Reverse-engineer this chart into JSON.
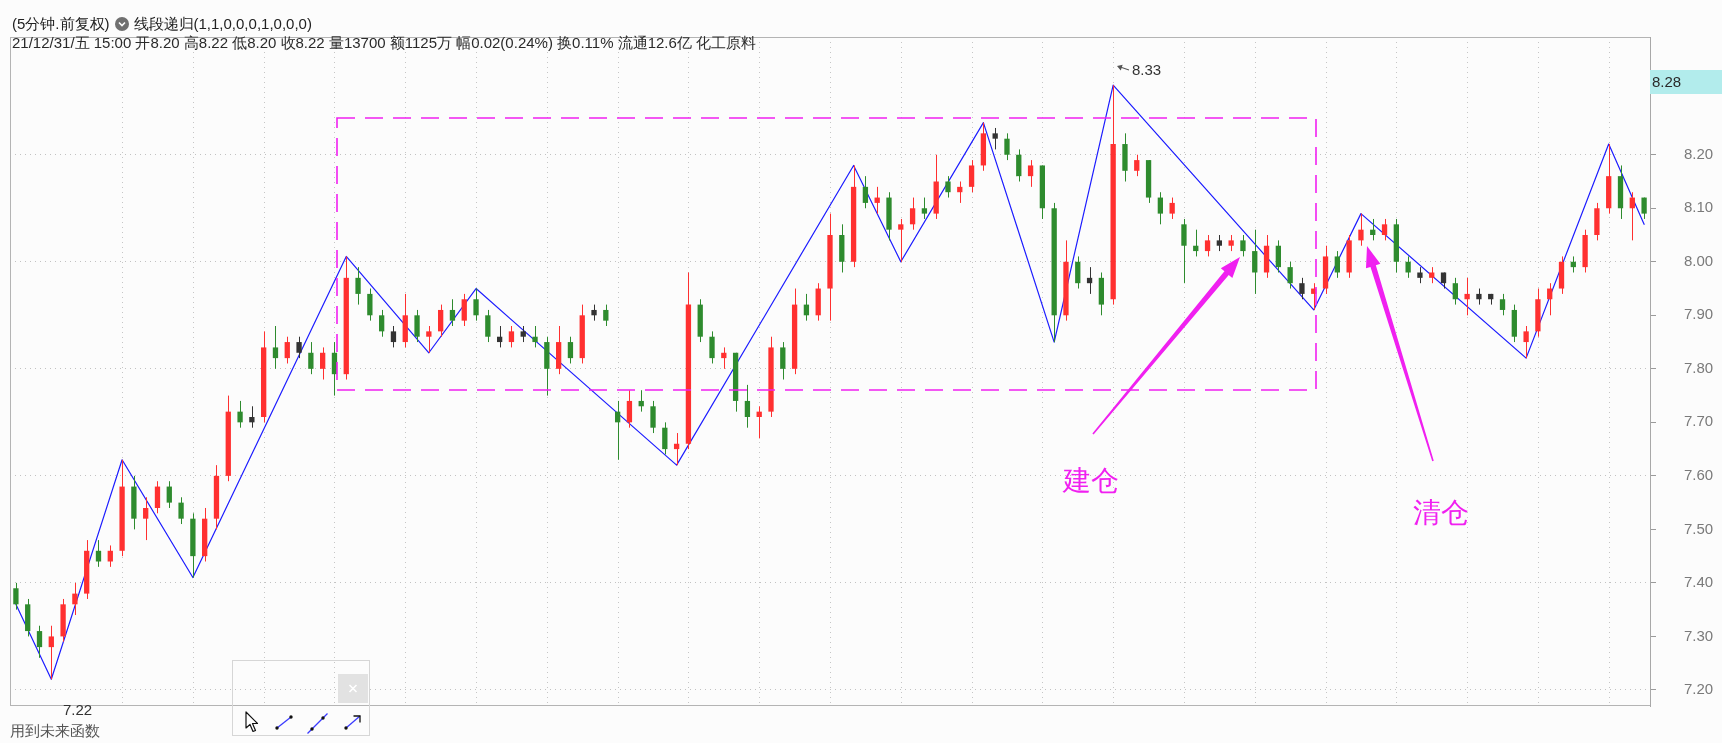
{
  "chart_data": {
    "type": "candlestick",
    "title": "(5分钟.前复权)",
    "subtitle": "线段递归(1,1,0,0,0,1,0,0,0)",
    "annotations": [
      "21/12/31/五 15:00 开8.20 高8.22 低8.20 收8.22 量13700 额1125万 幅0.02(0.24%) 换0.11% 流通12.6亿 化工原料",
      "8.33",
      "7.22",
      "8.28",
      "建仓",
      "清仓",
      "用到未来函数"
    ],
    "categories": [
      null,
      null,
      null,
      null,
      null,
      null,
      null,
      null,
      null,
      null,
      null,
      null,
      null,
      null,
      null,
      null,
      null,
      null,
      null,
      null,
      null,
      null,
      null,
      null,
      null,
      null,
      null,
      null,
      null,
      null,
      null,
      null,
      null,
      null,
      null,
      null,
      null,
      null,
      null,
      null,
      null,
      null,
      null,
      null,
      null,
      null,
      null,
      null,
      null,
      null,
      null,
      null,
      null,
      null,
      null,
      null,
      null,
      null,
      null,
      null,
      null,
      null,
      null,
      null,
      null,
      null,
      null,
      null,
      null,
      null,
      null,
      null,
      null,
      null,
      null,
      null,
      null,
      null,
      null,
      null,
      null,
      null,
      null,
      null,
      null,
      null,
      null,
      null,
      null,
      null,
      null,
      null,
      null,
      null,
      null,
      null,
      null,
      null,
      null,
      null,
      null,
      null,
      null,
      null,
      null,
      null,
      null,
      null,
      null,
      null,
      null,
      null,
      null,
      null,
      null,
      null,
      null,
      null,
      null,
      null,
      null,
      null,
      null,
      null,
      null,
      null,
      null,
      null,
      null,
      null,
      null,
      null,
      null,
      null,
      null,
      null,
      null,
      null,
      null
    ],
    "series": [
      {
        "ohlc": [
          [
            7.39,
            7.4,
            7.35,
            7.36
          ],
          [
            7.36,
            7.37,
            7.3,
            7.31
          ],
          [
            7.31,
            7.32,
            7.26,
            7.28
          ],
          [
            7.28,
            7.32,
            7.22,
            7.3
          ],
          [
            7.3,
            7.37,
            7.29,
            7.36
          ],
          [
            7.36,
            7.4,
            7.34,
            7.38
          ],
          [
            7.38,
            7.48,
            7.37,
            7.46
          ],
          [
            7.46,
            7.48,
            7.43,
            7.44
          ],
          [
            7.44,
            7.47,
            7.43,
            7.46
          ],
          [
            7.46,
            7.63,
            7.45,
            7.58
          ],
          [
            7.58,
            7.6,
            7.5,
            7.52
          ],
          [
            7.52,
            7.56,
            7.48,
            7.54
          ],
          [
            7.54,
            7.59,
            7.53,
            7.58
          ],
          [
            7.58,
            7.59,
            7.54,
            7.55
          ],
          [
            7.55,
            7.56,
            7.51,
            7.52
          ],
          [
            7.52,
            7.53,
            7.41,
            7.45
          ],
          [
            7.45,
            7.54,
            7.44,
            7.52
          ],
          [
            7.52,
            7.62,
            7.5,
            7.6
          ],
          [
            7.6,
            7.75,
            7.59,
            7.72
          ],
          [
            7.72,
            7.74,
            7.69,
            7.7
          ],
          [
            7.7,
            7.73,
            7.69,
            7.71
          ],
          [
            7.71,
            7.87,
            7.7,
            7.84
          ],
          [
            7.84,
            7.88,
            7.8,
            7.82
          ],
          [
            7.82,
            7.86,
            7.81,
            7.85
          ],
          [
            7.85,
            7.86,
            7.82,
            7.83
          ],
          [
            7.83,
            7.85,
            7.79,
            7.8
          ],
          [
            7.8,
            7.84,
            7.78,
            7.83
          ],
          [
            7.83,
            7.85,
            7.75,
            7.79
          ],
          [
            7.79,
            8.01,
            7.78,
            7.97
          ],
          [
            7.97,
            7.99,
            7.92,
            7.94
          ],
          [
            7.94,
            7.95,
            7.89,
            7.9
          ],
          [
            7.9,
            7.91,
            7.86,
            7.87
          ],
          [
            7.87,
            7.88,
            7.84,
            7.85
          ],
          [
            7.85,
            7.94,
            7.84,
            7.9
          ],
          [
            7.9,
            7.91,
            7.85,
            7.86
          ],
          [
            7.86,
            7.88,
            7.83,
            7.87
          ],
          [
            7.87,
            7.92,
            7.86,
            7.91
          ],
          [
            7.91,
            7.93,
            7.88,
            7.89
          ],
          [
            7.89,
            7.94,
            7.88,
            7.93
          ],
          [
            7.93,
            7.95,
            7.89,
            7.9
          ],
          [
            7.9,
            7.91,
            7.85,
            7.86
          ],
          [
            7.86,
            7.88,
            7.84,
            7.85
          ],
          [
            7.85,
            7.88,
            7.84,
            7.87
          ],
          [
            7.87,
            7.88,
            7.85,
            7.86
          ],
          [
            7.86,
            7.88,
            7.84,
            7.85
          ],
          [
            7.85,
            7.86,
            7.75,
            7.8
          ],
          [
            7.8,
            7.88,
            7.79,
            7.85
          ],
          [
            7.85,
            7.86,
            7.81,
            7.82
          ],
          [
            7.82,
            7.92,
            7.81,
            7.9
          ],
          [
            7.9,
            7.92,
            7.89,
            7.91
          ],
          [
            7.91,
            7.92,
            7.88,
            7.89
          ],
          [
            7.72,
            7.74,
            7.63,
            7.7
          ],
          [
            7.7,
            7.76,
            7.69,
            7.74
          ],
          [
            7.74,
            7.76,
            7.72,
            7.73
          ],
          [
            7.73,
            7.74,
            7.68,
            7.69
          ],
          [
            7.69,
            7.7,
            7.64,
            7.65
          ],
          [
            7.65,
            7.68,
            7.62,
            7.66
          ],
          [
            7.66,
            7.98,
            7.65,
            7.92
          ],
          [
            7.92,
            7.93,
            7.85,
            7.86
          ],
          [
            7.86,
            7.87,
            7.81,
            7.82
          ],
          [
            7.82,
            7.84,
            7.8,
            7.83
          ],
          [
            7.83,
            7.83,
            7.72,
            7.74
          ],
          [
            7.74,
            7.77,
            7.69,
            7.71
          ],
          [
            7.71,
            7.73,
            7.67,
            7.72
          ],
          [
            7.72,
            7.86,
            7.71,
            7.84
          ],
          [
            7.84,
            7.85,
            7.78,
            7.8
          ],
          [
            7.8,
            7.95,
            7.79,
            7.92
          ],
          [
            7.92,
            7.94,
            7.89,
            7.9
          ],
          [
            7.9,
            7.96,
            7.89,
            7.95
          ],
          [
            7.95,
            8.09,
            7.89,
            8.05
          ],
          [
            8.05,
            8.07,
            7.98,
            8.0
          ],
          [
            8.0,
            8.18,
            7.99,
            8.14
          ],
          [
            8.14,
            8.16,
            8.1,
            8.11
          ],
          [
            8.11,
            8.14,
            8.09,
            8.12
          ],
          [
            8.12,
            8.13,
            8.04,
            8.06
          ],
          [
            8.06,
            8.08,
            8.0,
            8.07
          ],
          [
            8.07,
            8.12,
            8.06,
            8.1
          ],
          [
            8.1,
            8.12,
            8.08,
            8.09
          ],
          [
            8.09,
            8.2,
            8.08,
            8.15
          ],
          [
            8.15,
            8.16,
            8.12,
            8.13
          ],
          [
            8.13,
            8.15,
            8.11,
            8.14
          ],
          [
            8.14,
            8.19,
            8.13,
            8.18
          ],
          [
            8.18,
            8.26,
            8.17,
            8.24
          ],
          [
            8.24,
            8.25,
            8.21,
            8.23
          ],
          [
            8.23,
            8.24,
            8.19,
            8.2
          ],
          [
            8.2,
            8.21,
            8.15,
            8.16
          ],
          [
            8.16,
            8.19,
            8.14,
            8.18
          ],
          [
            8.18,
            8.18,
            8.08,
            8.1
          ],
          [
            8.1,
            8.11,
            7.85,
            7.9
          ],
          [
            7.9,
            8.04,
            7.89,
            8.0
          ],
          [
            8.0,
            8.01,
            7.95,
            7.96
          ],
          [
            7.96,
            7.99,
            7.94,
            7.97
          ],
          [
            7.97,
            7.98,
            7.9,
            7.92
          ],
          [
            7.93,
            8.33,
            7.92,
            8.22
          ],
          [
            8.22,
            8.24,
            8.15,
            8.17
          ],
          [
            8.17,
            8.2,
            8.16,
            8.19
          ],
          [
            8.19,
            8.19,
            8.11,
            8.12
          ],
          [
            8.12,
            8.13,
            8.07,
            8.09
          ],
          [
            8.09,
            8.12,
            8.08,
            8.11
          ],
          [
            8.07,
            8.08,
            7.96,
            8.03
          ],
          [
            8.03,
            8.06,
            8.01,
            8.02
          ],
          [
            8.02,
            8.05,
            8.01,
            8.04
          ],
          [
            8.04,
            8.05,
            8.02,
            8.03
          ],
          [
            8.03,
            8.05,
            8.02,
            8.04
          ],
          [
            8.04,
            8.05,
            8.01,
            8.02
          ],
          [
            8.02,
            8.06,
            7.94,
            7.98
          ],
          [
            7.98,
            8.05,
            7.97,
            8.03
          ],
          [
            8.03,
            8.04,
            7.98,
            7.99
          ],
          [
            7.99,
            8.0,
            7.95,
            7.96
          ],
          [
            7.96,
            7.97,
            7.93,
            7.94
          ],
          [
            7.94,
            7.96,
            7.91,
            7.95
          ],
          [
            7.95,
            8.03,
            7.94,
            8.01
          ],
          [
            8.01,
            8.02,
            7.97,
            7.98
          ],
          [
            7.98,
            8.05,
            7.97,
            8.04
          ],
          [
            8.04,
            8.09,
            8.03,
            8.06
          ],
          [
            8.06,
            8.08,
            8.04,
            8.05
          ],
          [
            8.05,
            8.08,
            8.04,
            8.07
          ],
          [
            8.07,
            8.08,
            7.98,
            8.0
          ],
          [
            8.0,
            8.01,
            7.97,
            7.98
          ],
          [
            7.98,
            7.99,
            7.96,
            7.97
          ],
          [
            7.97,
            7.99,
            7.96,
            7.98
          ],
          [
            7.98,
            7.98,
            7.95,
            7.96
          ],
          [
            7.96,
            7.97,
            7.92,
            7.93
          ],
          [
            7.93,
            7.97,
            7.9,
            7.94
          ],
          [
            7.94,
            7.95,
            7.92,
            7.93
          ],
          [
            7.94,
            7.94,
            7.92,
            7.93
          ],
          [
            7.93,
            7.94,
            7.9,
            7.91
          ],
          [
            7.91,
            7.92,
            7.85,
            7.86
          ],
          [
            7.85,
            7.88,
            7.82,
            7.87
          ],
          [
            7.87,
            7.95,
            7.86,
            7.93
          ],
          [
            7.93,
            7.96,
            7.9,
            7.95
          ],
          [
            7.95,
            8.01,
            7.94,
            8.0
          ],
          [
            8.0,
            8.01,
            7.98,
            7.99
          ],
          [
            7.99,
            8.06,
            7.98,
            8.05
          ],
          [
            8.05,
            8.11,
            8.04,
            8.1
          ],
          [
            8.1,
            8.22,
            8.09,
            8.16
          ],
          [
            8.16,
            8.18,
            8.08,
            8.1
          ],
          [
            8.1,
            8.13,
            8.04,
            8.12
          ],
          [
            8.12,
            8.12,
            8.08,
            8.09
          ]
        ],
        "colors": [
          "#2e8b2e",
          "#2e8b2e",
          "#2e8b2e",
          "#ff3030",
          "#ff3030",
          "#ff3030",
          "#ff3030",
          "#2e8b2e",
          "#ff3030",
          "#ff3030",
          "#2e8b2e",
          "#ff3030",
          "#ff3030",
          "#2e8b2e",
          "#2e8b2e",
          "#2e8b2e",
          "#ff3030",
          "#ff3030",
          "#ff3030",
          "#2e8b2e",
          "#333333",
          "#ff3030",
          "#2e8b2e",
          "#ff3030",
          "#333333",
          "#2e8b2e",
          "#ff3030",
          "#2e8b2e",
          "#ff3030",
          "#2e8b2e",
          "#2e8b2e",
          "#2e8b2e",
          "#333333",
          "#ff3030",
          "#2e8b2e",
          "#ff3030",
          "#ff3030",
          "#2e8b2e",
          "#ff3030",
          "#2e8b2e",
          "#2e8b2e",
          "#333333",
          "#ff3030",
          "#333333",
          "#2e8b2e",
          "#2e8b2e",
          "#ff3030",
          "#2e8b2e",
          "#ff3030",
          "#333333",
          "#2e8b2e",
          "#2e8b2e",
          "#ff3030",
          "#2e8b2e",
          "#2e8b2e",
          "#2e8b2e",
          "#ff3030",
          "#ff3030",
          "#2e8b2e",
          "#2e8b2e",
          "#ff3030",
          "#2e8b2e",
          "#2e8b2e",
          "#ff3030",
          "#ff3030",
          "#2e8b2e",
          "#ff3030",
          "#2e8b2e",
          "#ff3030",
          "#ff3030",
          "#2e8b2e",
          "#ff3030",
          "#2e8b2e",
          "#ff3030",
          "#2e8b2e",
          "#ff3030",
          "#ff3030",
          "#2e8b2e",
          "#ff3030",
          "#2e8b2e",
          "#ff3030",
          "#ff3030",
          "#ff3030",
          "#333333",
          "#2e8b2e",
          "#2e8b2e",
          "#ff3030",
          "#2e8b2e",
          "#2e8b2e",
          "#ff3030",
          "#2e8b2e",
          "#333333",
          "#2e8b2e",
          "#ff3030",
          "#2e8b2e",
          "#ff3030",
          "#2e8b2e",
          "#2e8b2e",
          "#ff3030",
          "#2e8b2e",
          "#2e8b2e",
          "#ff3030",
          "#333333",
          "#ff3030",
          "#2e8b2e",
          "#2e8b2e",
          "#ff3030",
          "#2e8b2e",
          "#2e8b2e",
          "#333333",
          "#ff3030",
          "#ff3030",
          "#2e8b2e",
          "#ff3030",
          "#ff3030",
          "#2e8b2e",
          "#ff3030",
          "#2e8b2e",
          "#2e8b2e",
          "#333333",
          "#ff3030",
          "#333333",
          "#2e8b2e",
          "#ff3030",
          "#333333",
          "#333333",
          "#2e8b2e",
          "#2e8b2e",
          "#ff3030",
          "#ff3030",
          "#ff3030",
          "#ff3030",
          "#2e8b2e",
          "#ff3030",
          "#ff3030",
          "#ff3030",
          "#2e8b2e",
          "#ff3030",
          "#2e8b2e"
        ]
      },
      {
        "type": "line",
        "color": "#1c1cff",
        "values": [
          7.36,
          null,
          null,
          7.22,
          null,
          null,
          null,
          null,
          null,
          7.63,
          null,
          null,
          null,
          null,
          null,
          7.41,
          null,
          null,
          null,
          null,
          null,
          null,
          null,
          null,
          null,
          null,
          null,
          null,
          8.01,
          null,
          null,
          null,
          null,
          null,
          null,
          7.83,
          null,
          null,
          null,
          7.95,
          null,
          null,
          null,
          null,
          null,
          null,
          null,
          null,
          null,
          null,
          null,
          null,
          null,
          null,
          null,
          null,
          7.62,
          null,
          null,
          null,
          null,
          null,
          null,
          null,
          null,
          null,
          null,
          null,
          null,
          null,
          null,
          8.18,
          null,
          null,
          null,
          8.0,
          null,
          null,
          null,
          null,
          null,
          null,
          8.26,
          null,
          null,
          null,
          null,
          null,
          7.85,
          null,
          null,
          null,
          null,
          8.33,
          null,
          null,
          null,
          null,
          null,
          null,
          null,
          null,
          null,
          null,
          null,
          null,
          null,
          null,
          null,
          null,
          7.91,
          null,
          null,
          null,
          8.09,
          null,
          null,
          null,
          null,
          null,
          null,
          null,
          null,
          null,
          null,
          null,
          null,
          null,
          7.82,
          null,
          null,
          null,
          null,
          null,
          null,
          8.22,
          null,
          null,
          8.07
        ]
      }
    ],
    "ylim": [
      7.17,
      8.42
    ],
    "yticks": [
      {
        "value": 7.2,
        "label": "7.20"
      },
      {
        "value": 7.3,
        "label": "7.30"
      },
      {
        "value": 7.4,
        "label": "7.40"
      },
      {
        "value": 7.5,
        "label": "7.50"
      },
      {
        "value": 7.6,
        "label": "7.60"
      },
      {
        "value": 7.7,
        "label": "7.70"
      },
      {
        "value": 7.8,
        "label": "7.80"
      },
      {
        "value": 7.9,
        "label": "7.90"
      },
      {
        "value": 8.0,
        "label": "8.00"
      },
      {
        "value": 8.1,
        "label": "8.10"
      },
      {
        "value": 8.2,
        "label": "8.20"
      }
    ],
    "grid": "y",
    "tick_labels": "y"
  }
}
